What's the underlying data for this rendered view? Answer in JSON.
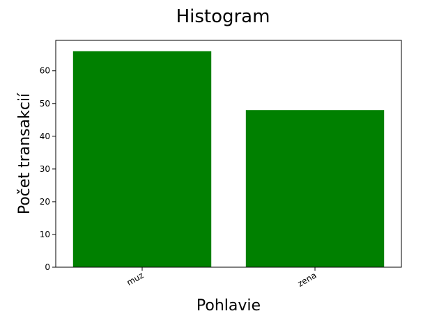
{
  "chart_data": {
    "type": "bar",
    "title": "Histogram",
    "xlabel": "Pohlavie",
    "ylabel": "Počet transakcií",
    "categories": [
      "muz",
      "zena"
    ],
    "values": [
      66,
      48
    ],
    "ylim": [
      0,
      69.3
    ],
    "yticks": [
      0,
      10,
      20,
      30,
      40,
      50,
      60
    ],
    "grid": false,
    "bar_color": "#008000",
    "xtick_rotation_deg": 30
  }
}
